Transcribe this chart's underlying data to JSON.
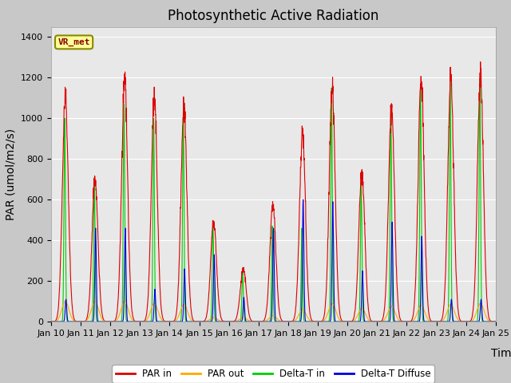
{
  "title": "Photosynthetic Active Radiation",
  "ylabel": "PAR (umol/m2/s)",
  "xlabel": "Time",
  "ylim": [
    0,
    1450
  ],
  "yticks": [
    0,
    200,
    400,
    600,
    800,
    1000,
    1200,
    1400
  ],
  "xtick_labels": [
    "Jan 10",
    "Jan 11",
    "Jan 12",
    "Jan 13",
    "Jan 14",
    "Jan 15",
    "Jan 16",
    "Jan 17",
    "Jan 18",
    "Jan 19",
    "Jan 20",
    "Jan 21",
    "Jan 22",
    "Jan 23",
    "Jan 24",
    "Jan 25"
  ],
  "fig_bg_color": "#c8c8c8",
  "plot_bg_color": "#e8e8e8",
  "colors": {
    "PAR_in": "#dd0000",
    "PAR_out": "#ffaa00",
    "Delta_T_in": "#00cc00",
    "Delta_T_diffuse": "#0000dd"
  },
  "legend_label_box": "VR_met",
  "legend_labels": [
    "PAR in",
    "PAR out",
    "Delta-T in",
    "Delta-T Diffuse"
  ],
  "title_fontsize": 12,
  "label_fontsize": 10,
  "tick_fontsize": 8,
  "n_days": 15,
  "pts_per_day": 144,
  "day_peaks_PAR_in": [
    1100,
    700,
    1190,
    1100,
    1060,
    490,
    260,
    580,
    930,
    1150,
    740,
    1060,
    1200,
    1200,
    1210
  ],
  "day_peaks_PAR_out": [
    100,
    100,
    100,
    90,
    85,
    20,
    20,
    30,
    60,
    90,
    65,
    75,
    80,
    85,
    90
  ],
  "day_peaks_DeltaT_in": [
    1000,
    700,
    1070,
    1000,
    1040,
    480,
    250,
    470,
    460,
    1150,
    680,
    1040,
    1160,
    1180,
    1195
  ],
  "day_peaks_DeltaT_dif": [
    110,
    460,
    460,
    160,
    260,
    330,
    120,
    460,
    600,
    590,
    250,
    490,
    420,
    110,
    110
  ]
}
